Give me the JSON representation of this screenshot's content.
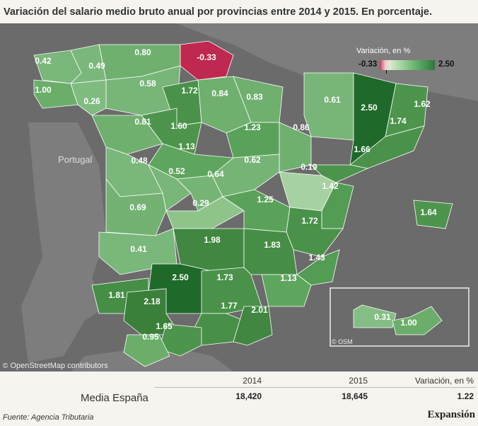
{
  "title": "Variación del salario medio bruto anual por provincias entre 2014 y 2015. En porcentaje.",
  "legend": {
    "title": "Variación, en %",
    "min": "-0.33",
    "max": "2.50",
    "min_color": "#c8385a",
    "max_color": "#2a7a3a"
  },
  "map_labels": {
    "portugal": "Portugal",
    "osm_credit": "OpenStreetMap contributors",
    "osm_symbol": "©",
    "inset_credit": "© OSM"
  },
  "provinces": [
    {
      "value": "0.42",
      "color": "#7ab77a"
    },
    {
      "value": "0.49",
      "color": "#7ab77a"
    },
    {
      "value": "0.80",
      "color": "#6fb06f"
    },
    {
      "value": "-0.33",
      "color": "#c0294f"
    },
    {
      "value": "1.00",
      "color": "#6aae6a"
    },
    {
      "value": "0.58",
      "color": "#78b578"
    },
    {
      "value": "0.26",
      "color": "#80bc80"
    },
    {
      "value": "1.72",
      "color": "#4a924a"
    },
    {
      "value": "0.84",
      "color": "#6fb06f"
    },
    {
      "value": "0.83",
      "color": "#6fb06f"
    },
    {
      "value": "0.61",
      "color": "#78b578"
    },
    {
      "value": "2.50",
      "color": "#1f6a2a"
    },
    {
      "value": "1.62",
      "color": "#4d954d"
    },
    {
      "value": "0.81",
      "color": "#6fb06f"
    },
    {
      "value": "1.60",
      "color": "#4d954d"
    },
    {
      "value": "1.23",
      "color": "#5aa25a"
    },
    {
      "value": "0.86",
      "color": "#6fb06f"
    },
    {
      "value": "1.74",
      "color": "#4a924a"
    },
    {
      "value": "1.13",
      "color": "#5ea65e"
    },
    {
      "value": "1.66",
      "color": "#4c944c"
    },
    {
      "value": "0.48",
      "color": "#7ab77a"
    },
    {
      "value": "0.52",
      "color": "#79b679"
    },
    {
      "value": "0.64",
      "color": "#76b476"
    },
    {
      "value": "0.62",
      "color": "#76b476"
    },
    {
      "value": "0.19",
      "color": "#a6d1a0"
    },
    {
      "value": "1.42",
      "color": "#539c53"
    },
    {
      "value": "0.69",
      "color": "#74b274"
    },
    {
      "value": "0.29",
      "color": "#8ec48a"
    },
    {
      "value": "1.25",
      "color": "#5aa25a"
    },
    {
      "value": "1.64",
      "color": "#4d954d"
    },
    {
      "value": "1.72",
      "color": "#4a924a"
    },
    {
      "value": "0.41",
      "color": "#7ab77a"
    },
    {
      "value": "1.98",
      "color": "#418741"
    },
    {
      "value": "1.83",
      "color": "#468e46"
    },
    {
      "value": "1.43",
      "color": "#539c53"
    },
    {
      "value": "2.50",
      "color": "#1f6a2a"
    },
    {
      "value": "1.73",
      "color": "#4a924a"
    },
    {
      "value": "1.13",
      "color": "#5ea65e"
    },
    {
      "value": "1.81",
      "color": "#468e46"
    },
    {
      "value": "2.18",
      "color": "#3a803a"
    },
    {
      "value": "1.77",
      "color": "#488f48"
    },
    {
      "value": "2.01",
      "color": "#418741"
    },
    {
      "value": "1.65",
      "color": "#4d954d"
    },
    {
      "value": "0.95",
      "color": "#6aae6a"
    },
    {
      "value": "0.31",
      "color": "#84be84"
    },
    {
      "value": "1.00",
      "color": "#6aae6a"
    }
  ],
  "table": {
    "col_2014": "2014",
    "col_2015": "2015",
    "col_var": "Variación, en %",
    "row_label": "Media España",
    "val_2014": "18,420",
    "val_2015": "18,645",
    "val_var": "1.22"
  },
  "source": "Fuente: Agencia Tributaria",
  "brand": "Expansión"
}
